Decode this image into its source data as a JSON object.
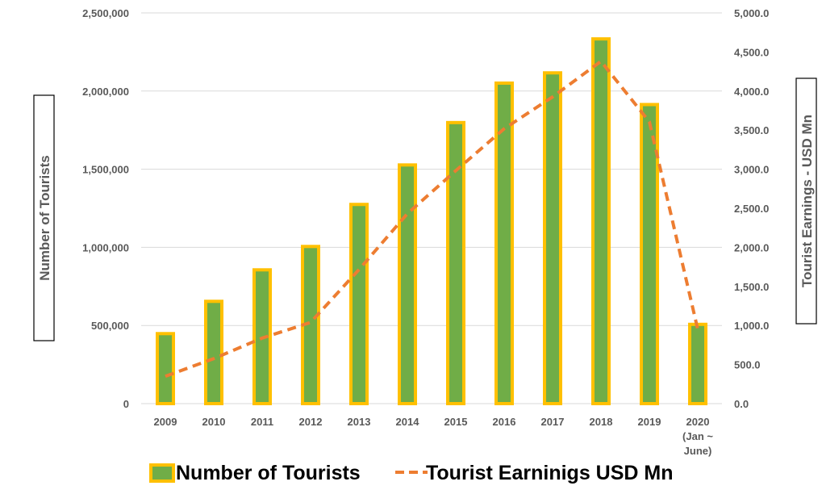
{
  "chart_data": {
    "type": "bar",
    "categories": [
      "2009",
      "2010",
      "2011",
      "2012",
      "2013",
      "2014",
      "2015",
      "2016",
      "2017",
      "2018",
      "2019",
      "2020 (Jan ~ June)"
    ],
    "series": [
      {
        "name": "Number of Tourists",
        "type": "bar",
        "axis": "left",
        "values": [
          447890,
          654476,
          855975,
          1005605,
          1274593,
          1527153,
          1798380,
          2050832,
          2116407,
          2333796,
          1913702,
          507311
        ]
      },
      {
        "name": "Tourist Earninigs USD Mn",
        "type": "line",
        "axis": "right",
        "values": [
          350,
          576,
          839,
          1039,
          1715,
          2431,
          2981,
          3518,
          3925,
          4381,
          3607,
          950
        ]
      }
    ],
    "ylabel": "Number of Tourists",
    "y2label": "Tourist Earnings - USD Mn",
    "ylim": [
      0,
      2500000
    ],
    "y2lim": [
      0,
      5000
    ],
    "yticks": [
      "0",
      "500,000",
      "1,000,000",
      "1,500,000",
      "2,000,000",
      "2,500,000"
    ],
    "y2ticks": [
      "0.0",
      "500.0",
      "1,000.0",
      "1,500.0",
      "2,000.0",
      "2,500.0",
      "3,000.0",
      "3,500.0",
      "4,000.0",
      "4,500.0",
      "5,000.0"
    ],
    "xticks": [
      [
        "2009"
      ],
      [
        "2010"
      ],
      [
        "2011"
      ],
      [
        "2012"
      ],
      [
        "2013"
      ],
      [
        "2014"
      ],
      [
        "2015"
      ],
      [
        "2016"
      ],
      [
        "2017"
      ],
      [
        "2018"
      ],
      [
        "2019"
      ],
      [
        "2020",
        "(Jan ~",
        "June)"
      ]
    ],
    "grid": true,
    "legend_position": "bottom",
    "colors": {
      "bar_fill": "#70AD47",
      "bar_border": "#FFC000",
      "line": "#ED7D31",
      "grid": "#D9D9D9"
    }
  }
}
